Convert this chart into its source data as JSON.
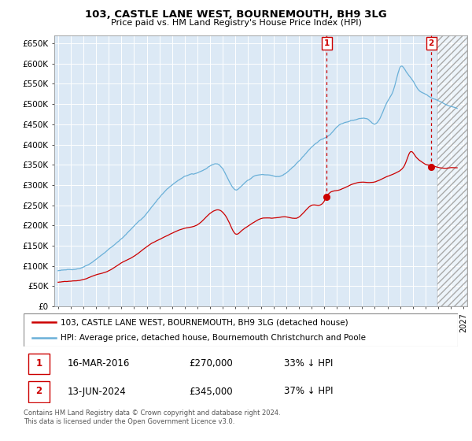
{
  "title": "103, CASTLE LANE WEST, BOURNEMOUTH, BH9 3LG",
  "subtitle": "Price paid vs. HM Land Registry's House Price Index (HPI)",
  "background_color": "#dce9f5",
  "ylim": [
    0,
    670000
  ],
  "yticks": [
    0,
    50000,
    100000,
    150000,
    200000,
    250000,
    300000,
    350000,
    400000,
    450000,
    500000,
    550000,
    600000,
    650000
  ],
  "ytick_labels": [
    "£0",
    "£50K",
    "£100K",
    "£150K",
    "£200K",
    "£250K",
    "£300K",
    "£350K",
    "£400K",
    "£450K",
    "£500K",
    "£550K",
    "£600K",
    "£650K"
  ],
  "xlim_start": 1994.7,
  "xlim_end": 2027.3,
  "sale1_x": 2016.21,
  "sale1_y": 270000,
  "sale2_x": 2024.45,
  "sale2_y": 345000,
  "hatch_start": 2024.95,
  "legend_line1": "103, CASTLE LANE WEST, BOURNEMOUTH, BH9 3LG (detached house)",
  "legend_line2": "HPI: Average price, detached house, Bournemouth Christchurch and Poole",
  "sale1_date": "16-MAR-2016",
  "sale1_price": "£270,000",
  "sale1_pct": "33% ↓ HPI",
  "sale2_date": "13-JUN-2024",
  "sale2_price": "£345,000",
  "sale2_pct": "37% ↓ HPI",
  "footer1": "Contains HM Land Registry data © Crown copyright and database right 2024.",
  "footer2": "This data is licensed under the Open Government Licence v3.0.",
  "hpi_color": "#6ab0d8",
  "sale_color": "#cc0000",
  "grid_color": "#ffffff"
}
